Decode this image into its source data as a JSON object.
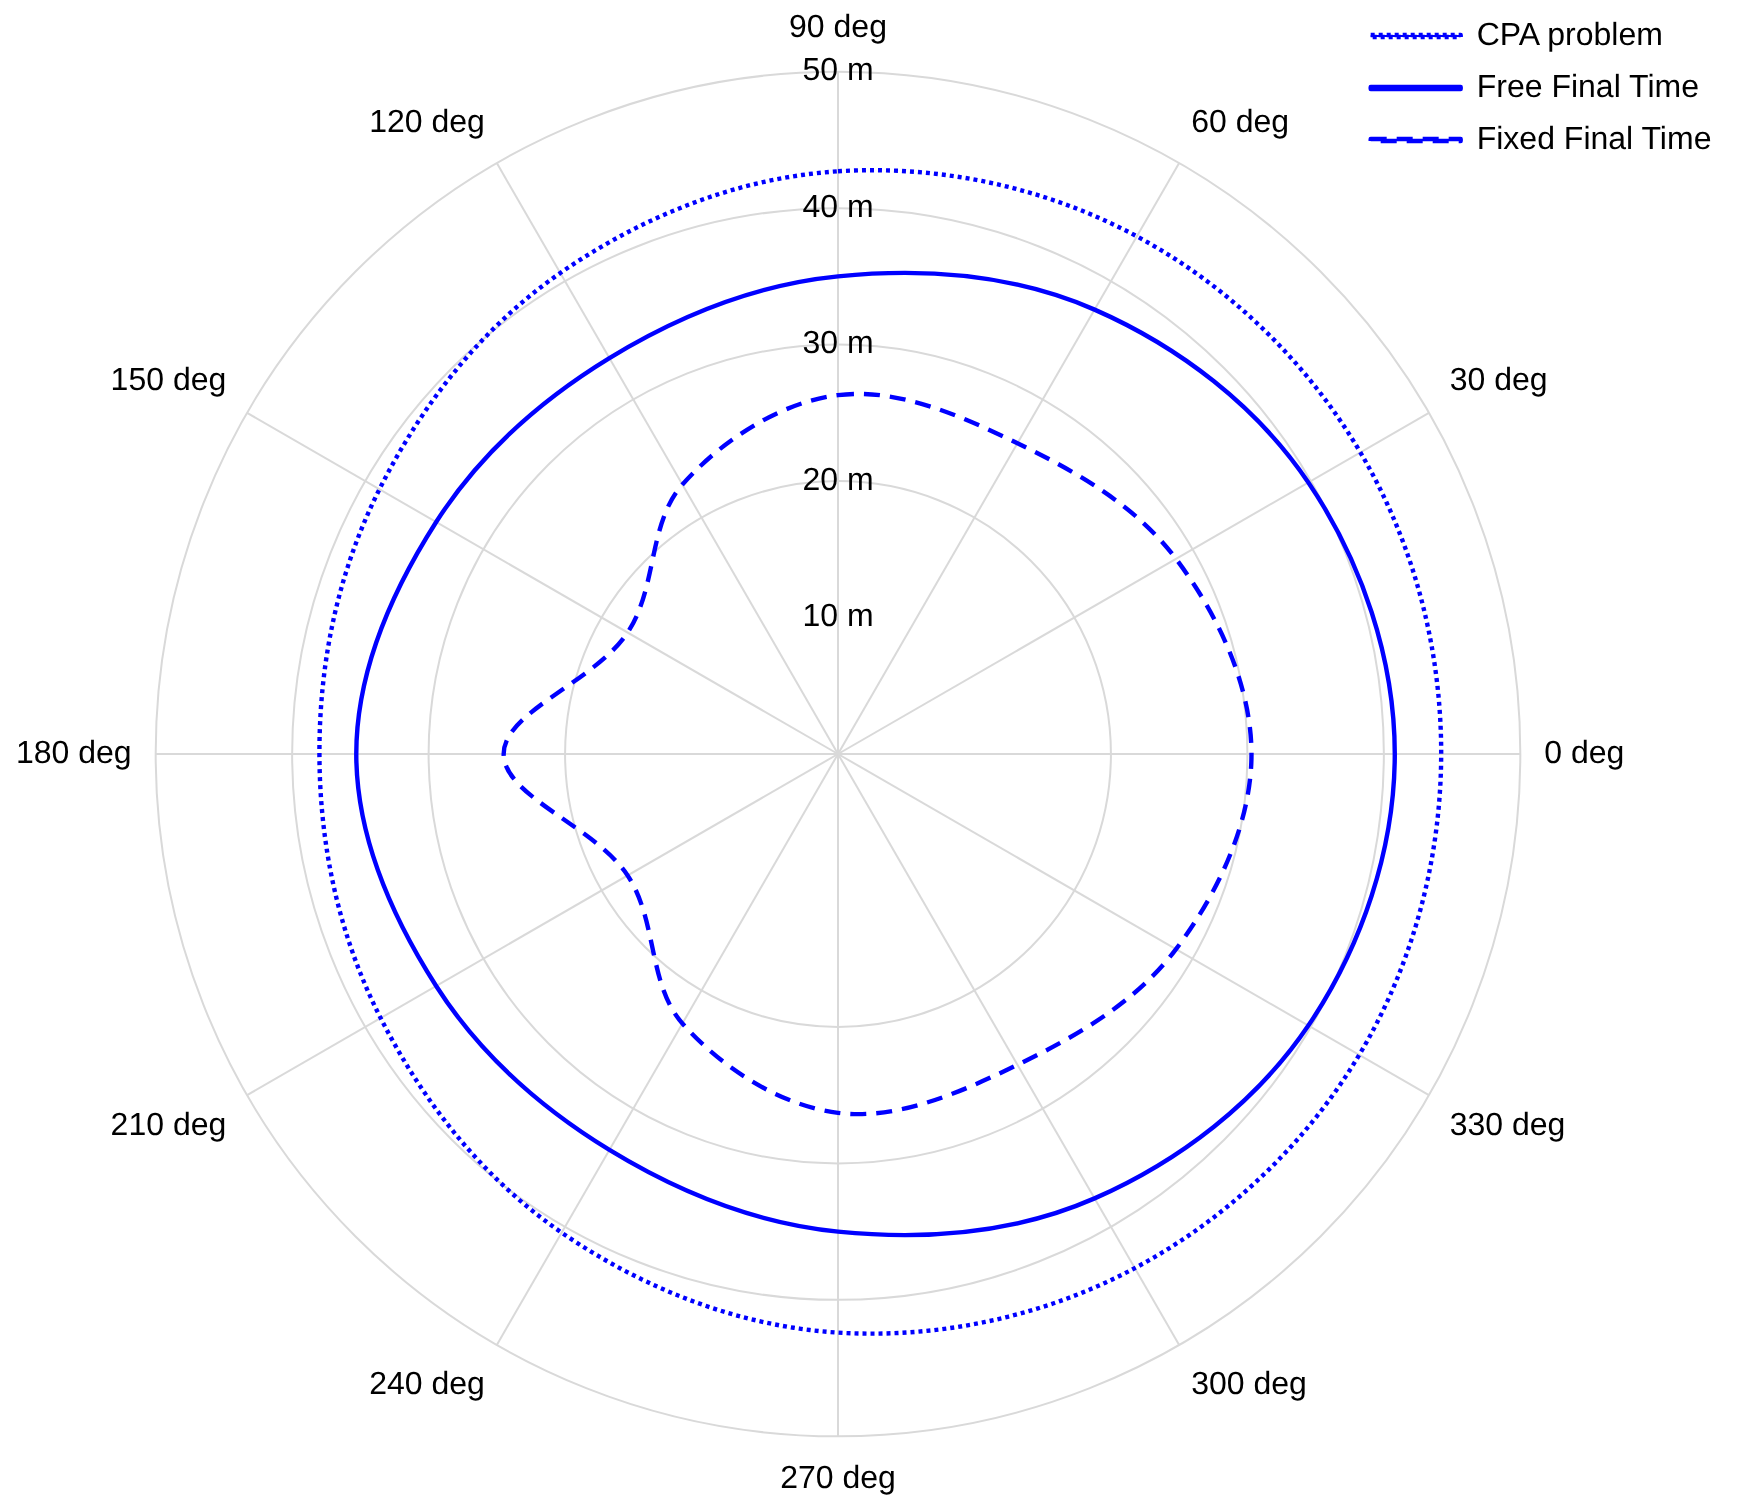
{
  "chart_data": {
    "type": "radar",
    "categories": [
      "90 deg",
      "60 deg",
      "30 deg",
      "0 deg",
      "330 deg",
      "300 deg",
      "270 deg",
      "240 deg",
      "210 deg",
      "180 deg",
      "150 deg",
      "120 deg"
    ],
    "series": [
      {
        "name": "CPA problem",
        "color": "#0000ff",
        "line_style": "dotted",
        "values": [
          42.7,
          43.8,
          44.2,
          44.2,
          44.1,
          43.5,
          42.4,
          40.5,
          38.7,
          38.0,
          38.8,
          40.7
        ]
      },
      {
        "name": "Free Final Time",
        "color": "#0000ff",
        "line_style": "solid",
        "values": [
          35.0,
          37.6,
          39.8,
          40.8,
          39.8,
          37.6,
          35.0,
          33.5,
          34.0,
          35.3,
          34.0,
          33.5
        ]
      },
      {
        "name": "Fixed Final Time",
        "color": "#0000ff",
        "line_style": "dashed",
        "values": [
          26.3,
          26.3,
          28.6,
          30.3,
          28.6,
          26.3,
          26.3,
          22.8,
          17.8,
          24.5,
          17.8,
          22.8
        ]
      }
    ],
    "ylim": [
      0,
      50
    ],
    "yticks": [
      {
        "value": 10,
        "label": "10 m"
      },
      {
        "value": 20,
        "label": "20 m"
      },
      {
        "value": 30,
        "label": "30 m"
      },
      {
        "value": 40,
        "label": "40 m"
      },
      {
        "value": 50,
        "label": "50 m"
      }
    ],
    "grid": true,
    "legend": "top right",
    "marker": "none"
  }
}
